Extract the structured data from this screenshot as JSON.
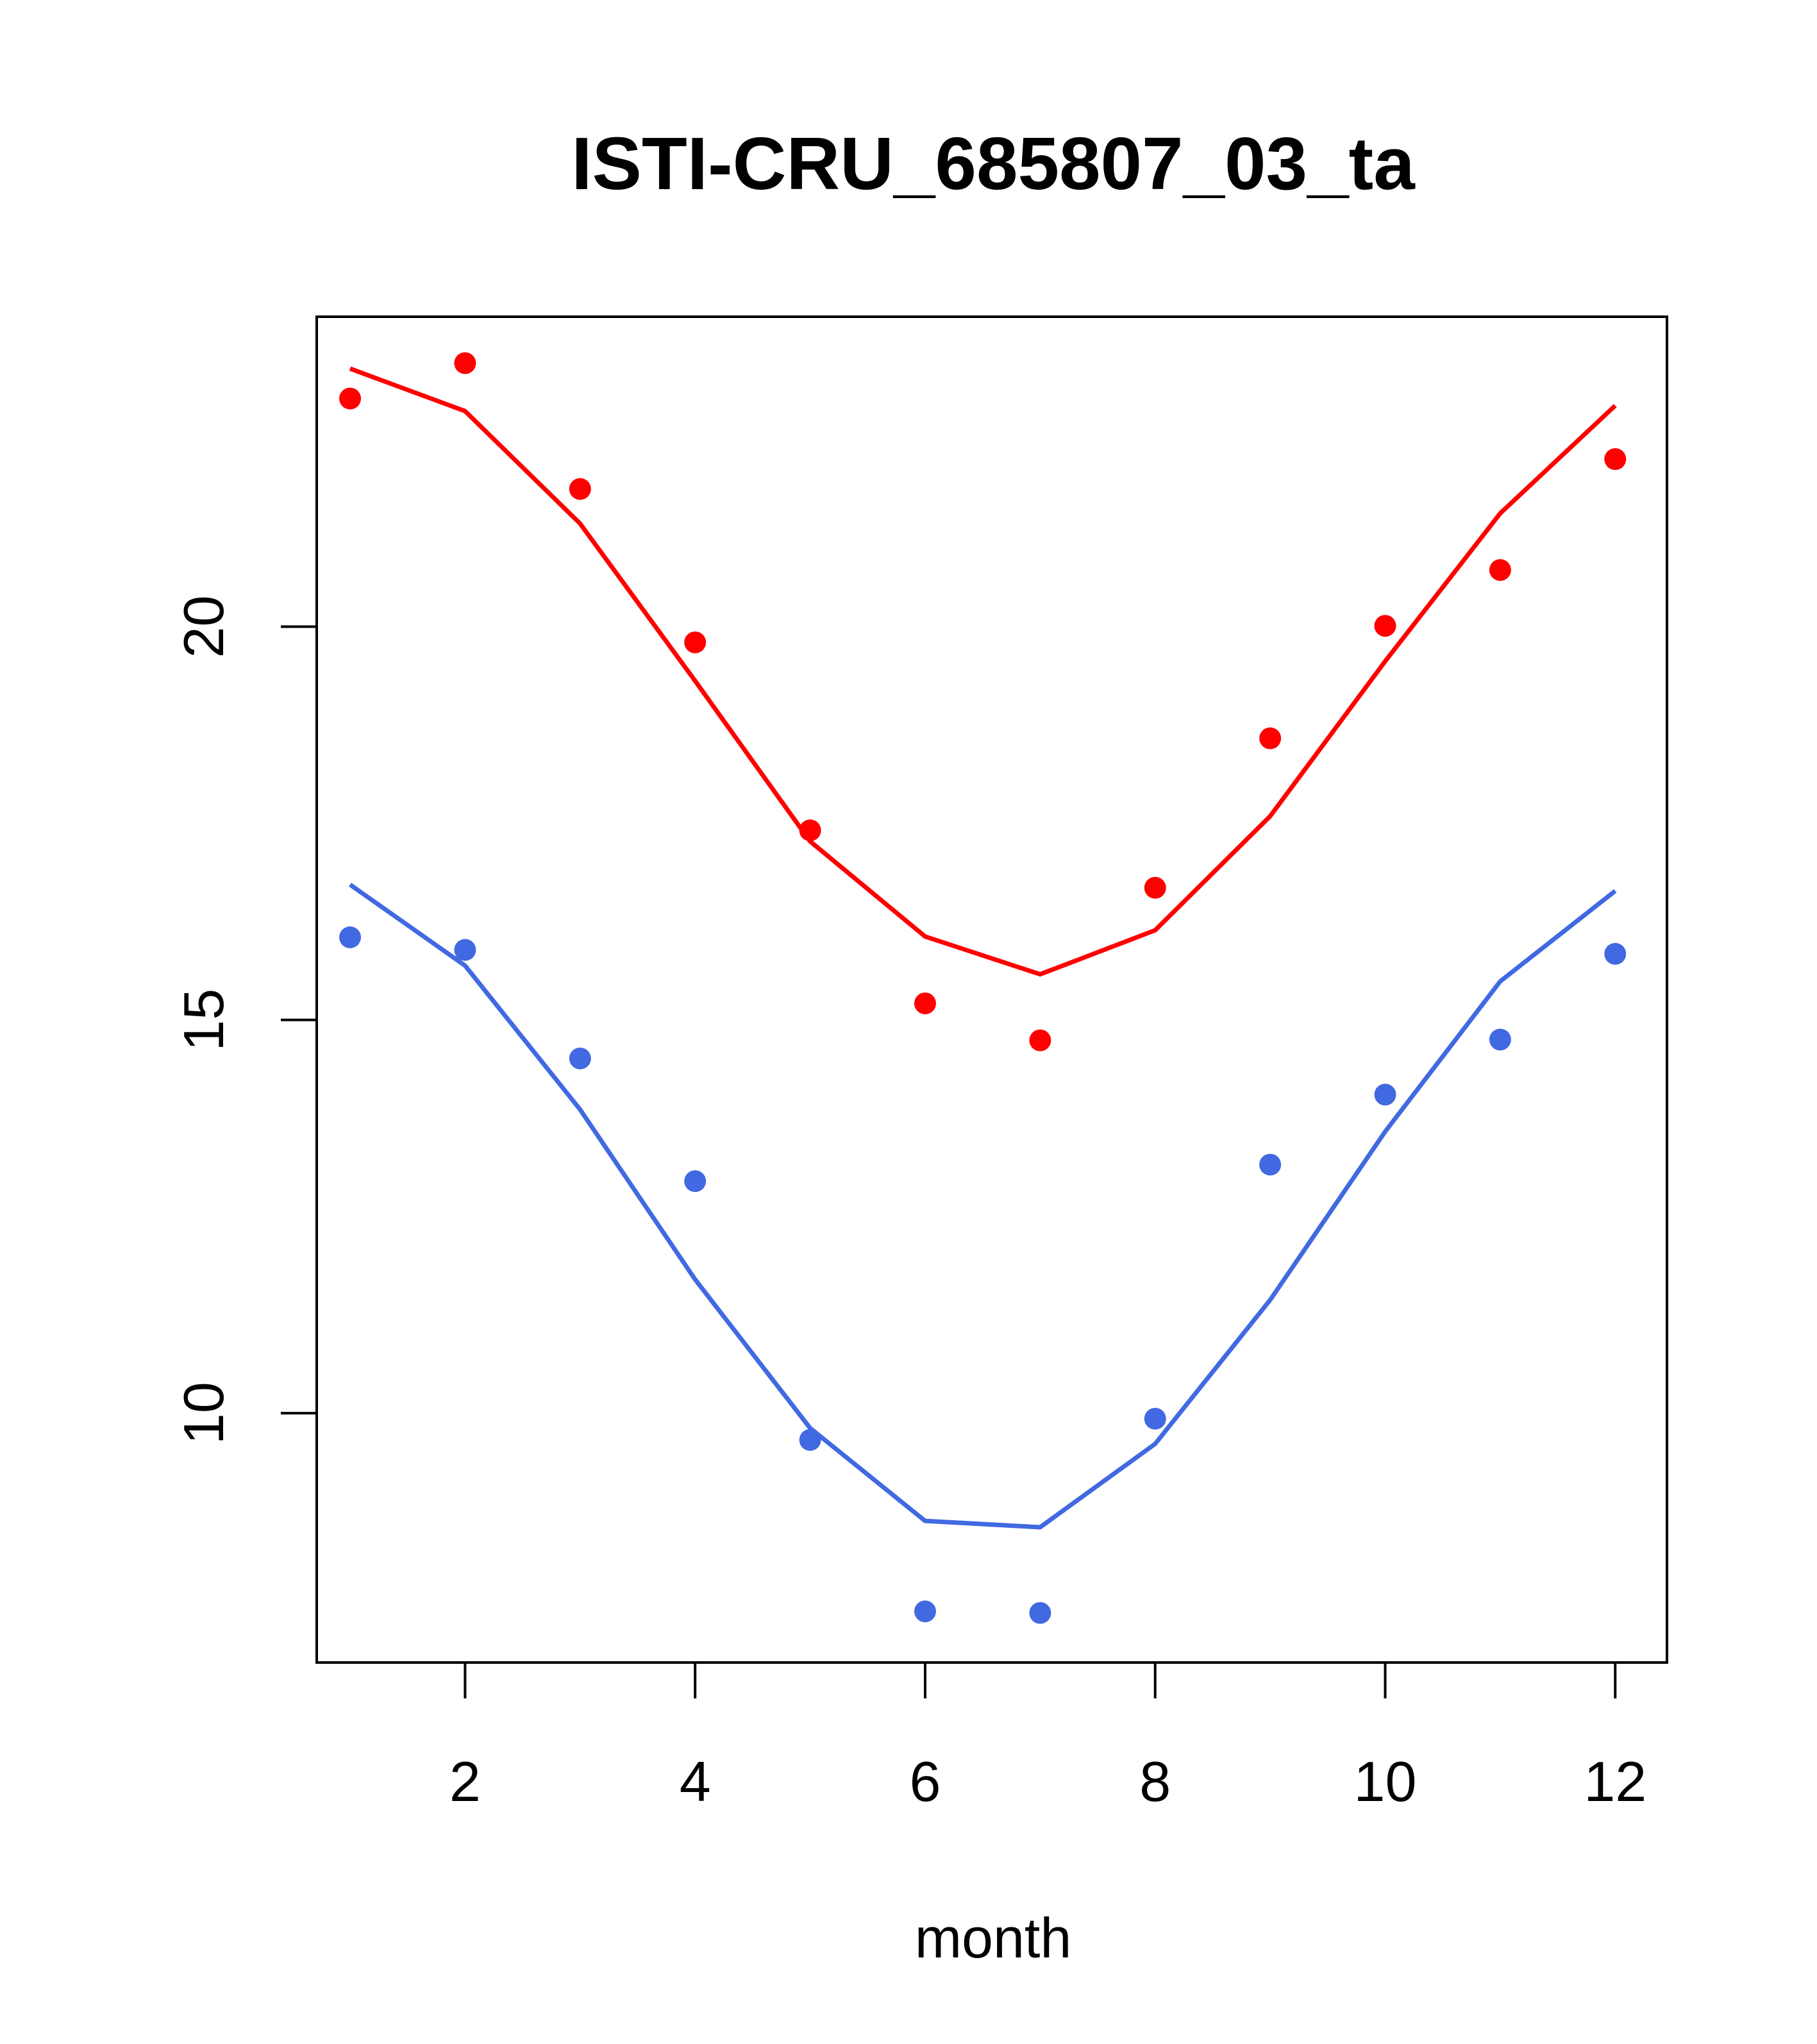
{
  "chart_data": {
    "type": "line",
    "title": "ISTI-CRU_685807_03_ta",
    "xlabel": "month",
    "ylabel": "",
    "xlim": [
      0.71,
      12.45
    ],
    "ylim": [
      6.83,
      23.94
    ],
    "xticks": [
      2,
      4,
      6,
      8,
      10,
      12
    ],
    "yticks": [
      10,
      15,
      20
    ],
    "grid": false,
    "legend": "none",
    "x": [
      1,
      2,
      3,
      4,
      5,
      6,
      7,
      8,
      9,
      10,
      11,
      12
    ],
    "series": [
      {
        "color": "#ff0000",
        "line": [
          23.28,
          22.74,
          21.31,
          19.31,
          17.27,
          16.06,
          15.58,
          16.14,
          17.59,
          19.56,
          21.44,
          22.81
        ],
        "points": [
          22.9,
          23.35,
          21.75,
          19.8,
          17.41,
          15.21,
          14.74,
          16.68,
          18.58,
          20.01,
          20.72,
          22.13
        ]
      },
      {
        "color": "#4169e1",
        "line": [
          16.72,
          15.69,
          13.86,
          11.7,
          9.81,
          8.63,
          8.55,
          9.61,
          11.44,
          13.58,
          15.49,
          16.64
        ]
      },
      {
        "color": "#4169e1",
        "points": [
          16.05,
          15.89,
          14.51,
          12.95,
          9.66,
          7.48,
          7.46,
          9.93,
          13.16,
          14.05,
          14.75,
          15.84
        ]
      }
    ]
  }
}
